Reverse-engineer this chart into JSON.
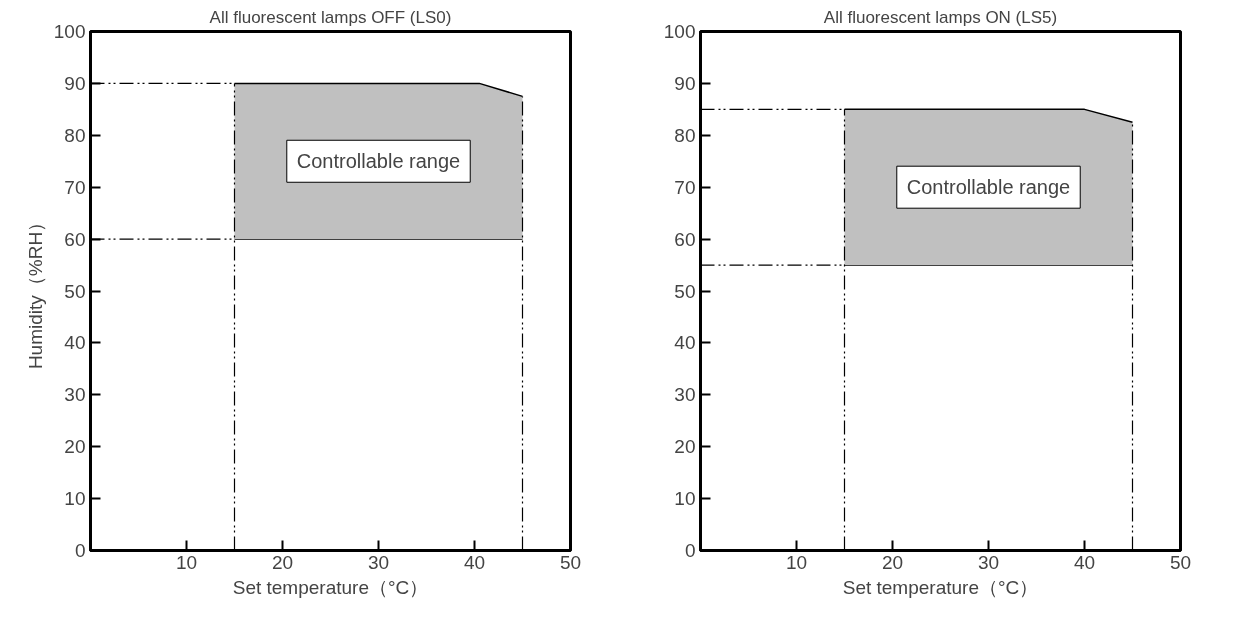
{
  "chart_data": [
    {
      "type": "area",
      "title": "All fluorescent lamps OFF (LS0)",
      "xlabel": "Set temperature（°C）",
      "ylabel": "Humidity（%RH）",
      "x": [
        15,
        40.5,
        45
      ],
      "stacked": true,
      "series": [
        {
          "color": "#ffffff",
          "values": [
            60,
            60,
            60
          ]
        },
        {
          "color": "#c0c0c0",
          "values": [
            30,
            30,
            27.5
          ]
        }
      ],
      "ref_lines": [
        {
          "axis": "y",
          "value": 90,
          "line_style": "dashdot"
        },
        {
          "axis": "y",
          "value": 60,
          "line_style": "dashdot"
        },
        {
          "axis": "x",
          "value": 15,
          "line_style": "dashdot"
        },
        {
          "axis": "x",
          "value": 45,
          "line_style": "dashdot"
        }
      ],
      "annotations": [
        "Controllable range"
      ],
      "xlim": [
        0,
        50
      ],
      "ylim": [
        0,
        100
      ],
      "xticks": [
        {
          "value": 0,
          "label": null
        },
        10,
        20,
        30,
        40,
        50
      ],
      "yticks": [
        0,
        10,
        20,
        30,
        40,
        50,
        60,
        70,
        80,
        90,
        100
      ],
      "grid": false
    },
    {
      "type": "area",
      "title": "All fluorescent lamps ON (LS5)",
      "xlabel": "Set temperature（°C）",
      "x": [
        15,
        40,
        45
      ],
      "stacked": true,
      "series": [
        {
          "color": "#ffffff",
          "values": [
            55,
            55,
            55
          ]
        },
        {
          "color": "#c0c0c0",
          "values": [
            30,
            30,
            27.5
          ]
        }
      ],
      "ref_lines": [
        {
          "axis": "y",
          "value": 85,
          "line_style": "dashdot"
        },
        {
          "axis": "y",
          "value": 55,
          "line_style": "dashdot"
        },
        {
          "axis": "x",
          "value": 15,
          "line_style": "dashdot"
        },
        {
          "axis": "x",
          "value": 45,
          "line_style": "dashdot"
        }
      ],
      "annotations": [
        "Controllable range"
      ],
      "xlim": [
        0,
        50
      ],
      "ylim": [
        0,
        100
      ],
      "xticks": [
        {
          "value": 0,
          "label": null
        },
        10,
        20,
        30,
        40,
        50
      ],
      "yticks": [
        0,
        10,
        20,
        30,
        40,
        50,
        60,
        70,
        80,
        90,
        100
      ],
      "grid": false
    }
  ]
}
